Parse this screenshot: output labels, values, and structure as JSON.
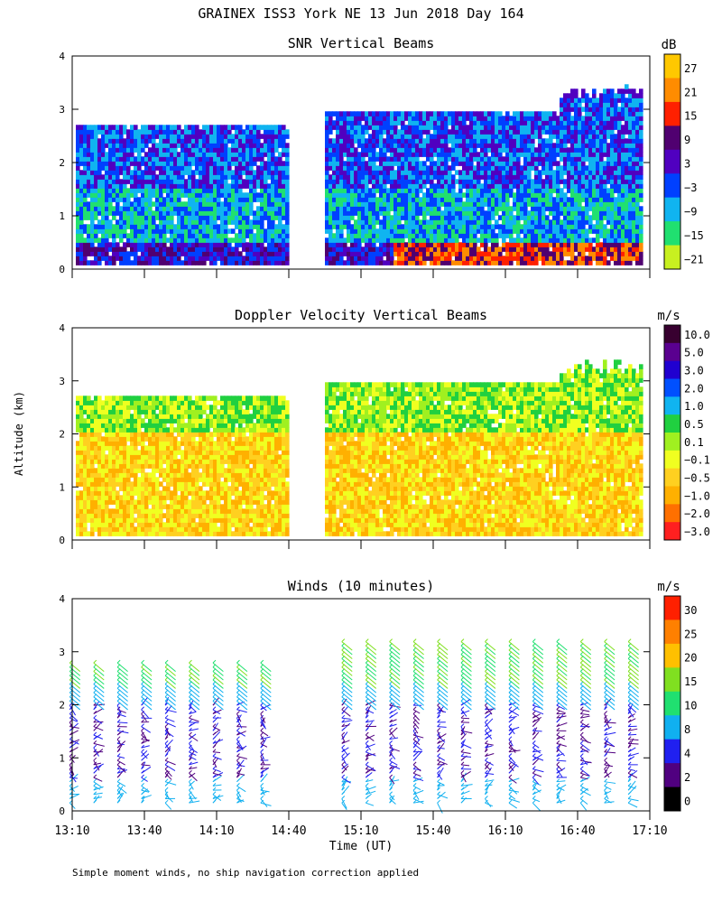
{
  "figure": {
    "title": "GRAINEX ISS3 York NE  13 Jun 2018 Day 164",
    "xlabel": "Time (UT)",
    "ylabel": "Altitude (km)",
    "footnote": "Simple moment winds, no ship navigation correction applied"
  },
  "chart_data": [
    {
      "type": "heatmap",
      "id": "snr",
      "title": "SNR Vertical Beams",
      "colorbar_label": "dB",
      "colorbar_ticks": [
        "27",
        "21",
        "15",
        "9",
        "3",
        "−3",
        "−9",
        "−15",
        "−21"
      ],
      "colorbar_colors": [
        "#ffc800",
        "#ff8c00",
        "#ff2000",
        "#500070",
        "#5000c0",
        "#0040ff",
        "#10b4f0",
        "#20e070",
        "#c8f020"
      ],
      "xlim": [
        13.1667,
        17.2
      ],
      "ylim": [
        0,
        4
      ],
      "y_ticks": [
        "0",
        "1",
        "2",
        "3",
        "4"
      ],
      "x_ticks": [],
      "data_gap": [
        14.6667,
        14.9167
      ]
    },
    {
      "type": "heatmap",
      "id": "doppler",
      "title": "Doppler Velocity Vertical Beams",
      "colorbar_label": "m/s",
      "colorbar_ticks": [
        "10.0",
        "5.0",
        "3.0",
        "2.0",
        "1.0",
        "0.5",
        "0.1",
        "−0.1",
        "−0.5",
        "−1.0",
        "−2.0",
        "−3.0"
      ],
      "colorbar_colors": [
        "#380030",
        "#5a0090",
        "#2000d0",
        "#0050ff",
        "#10b4f0",
        "#20d040",
        "#a0f020",
        "#f0ff20",
        "#ffd020",
        "#ffb000",
        "#ff7000",
        "#ff2020"
      ],
      "xlim": [
        13.1667,
        17.2
      ],
      "ylim": [
        0,
        4
      ],
      "y_ticks": [
        "0",
        "1",
        "2",
        "3",
        "4"
      ],
      "x_ticks": [],
      "data_gap": [
        14.6667,
        14.9167
      ]
    },
    {
      "type": "scatter",
      "id": "winds",
      "title": "Winds (10 minutes)",
      "colorbar_label": "m/s",
      "colorbar_ticks": [
        "30",
        "25",
        "20",
        "15",
        "10",
        "8",
        "4",
        "2",
        "0"
      ],
      "colorbar_colors": [
        "#ff2000",
        "#ff8000",
        "#ffc000",
        "#80e020",
        "#20e070",
        "#10b0f0",
        "#2020f0",
        "#500080",
        "#000000"
      ],
      "xlim": [
        13.1667,
        17.2
      ],
      "ylim": [
        0,
        4
      ],
      "y_ticks": [
        "0",
        "1",
        "2",
        "3",
        "4"
      ],
      "x_ticks": [
        "13:10",
        "13:40",
        "14:10",
        "14:40",
        "15:10",
        "15:40",
        "16:10",
        "16:40",
        "17:10"
      ],
      "profile_times": [
        13.2,
        13.367,
        13.533,
        13.7,
        13.867,
        14.033,
        14.2,
        14.367,
        14.533,
        14.7,
        15.1,
        15.267,
        15.433,
        15.6,
        15.767,
        15.933,
        16.1,
        16.267,
        16.433,
        16.6,
        16.767,
        16.933,
        17.1
      ],
      "missing_profiles": [
        14.7
      ]
    }
  ]
}
